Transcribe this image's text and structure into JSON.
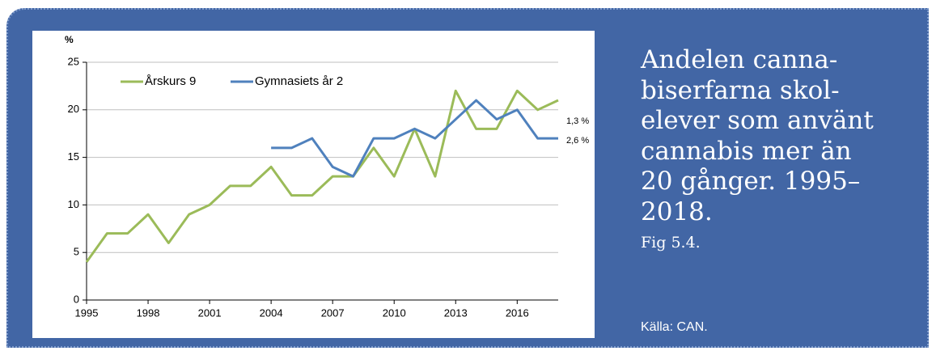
{
  "chart_data": {
    "type": "line",
    "y_label": "%",
    "x": [
      1995,
      1996,
      1997,
      1998,
      1999,
      2000,
      2001,
      2002,
      2003,
      2004,
      2005,
      2006,
      2007,
      2008,
      2009,
      2010,
      2011,
      2012,
      2013,
      2014,
      2015,
      2016,
      2017,
      2018
    ],
    "series": [
      {
        "name": "Årskurs 9",
        "color": "#9bbb59",
        "values": [
          4,
          7,
          7,
          9,
          6,
          9,
          10,
          12,
          12,
          14,
          11,
          11,
          13,
          13,
          16,
          13,
          18,
          13,
          22,
          18,
          18,
          22,
          20,
          21
        ]
      },
      {
        "name": "Gymnasiets år 2",
        "color": "#4f81bd",
        "values": [
          null,
          null,
          null,
          null,
          null,
          null,
          null,
          null,
          null,
          16,
          16,
          17,
          14,
          13,
          17,
          17,
          18,
          17,
          19,
          21,
          19,
          20,
          17,
          17
        ]
      }
    ],
    "xlim": [
      1995,
      2018
    ],
    "xticks": [
      1995,
      1998,
      2001,
      2004,
      2007,
      2010,
      2013,
      2016
    ],
    "ylim": [
      0,
      25
    ],
    "yticks": [
      0,
      5,
      10,
      15,
      20,
      25
    ],
    "grid": true,
    "legend": "top-left",
    "annotations": [
      "1,3 %",
      "2,6 %"
    ]
  },
  "caption": {
    "title_lines": [
      "Andelen canna-",
      "biserfarna skol-",
      "elever som använt",
      "cannabis mer än",
      "20 gånger. 1995–",
      "2018."
    ],
    "figure": "Fig 5.4.",
    "source": "Källa: CAN."
  }
}
